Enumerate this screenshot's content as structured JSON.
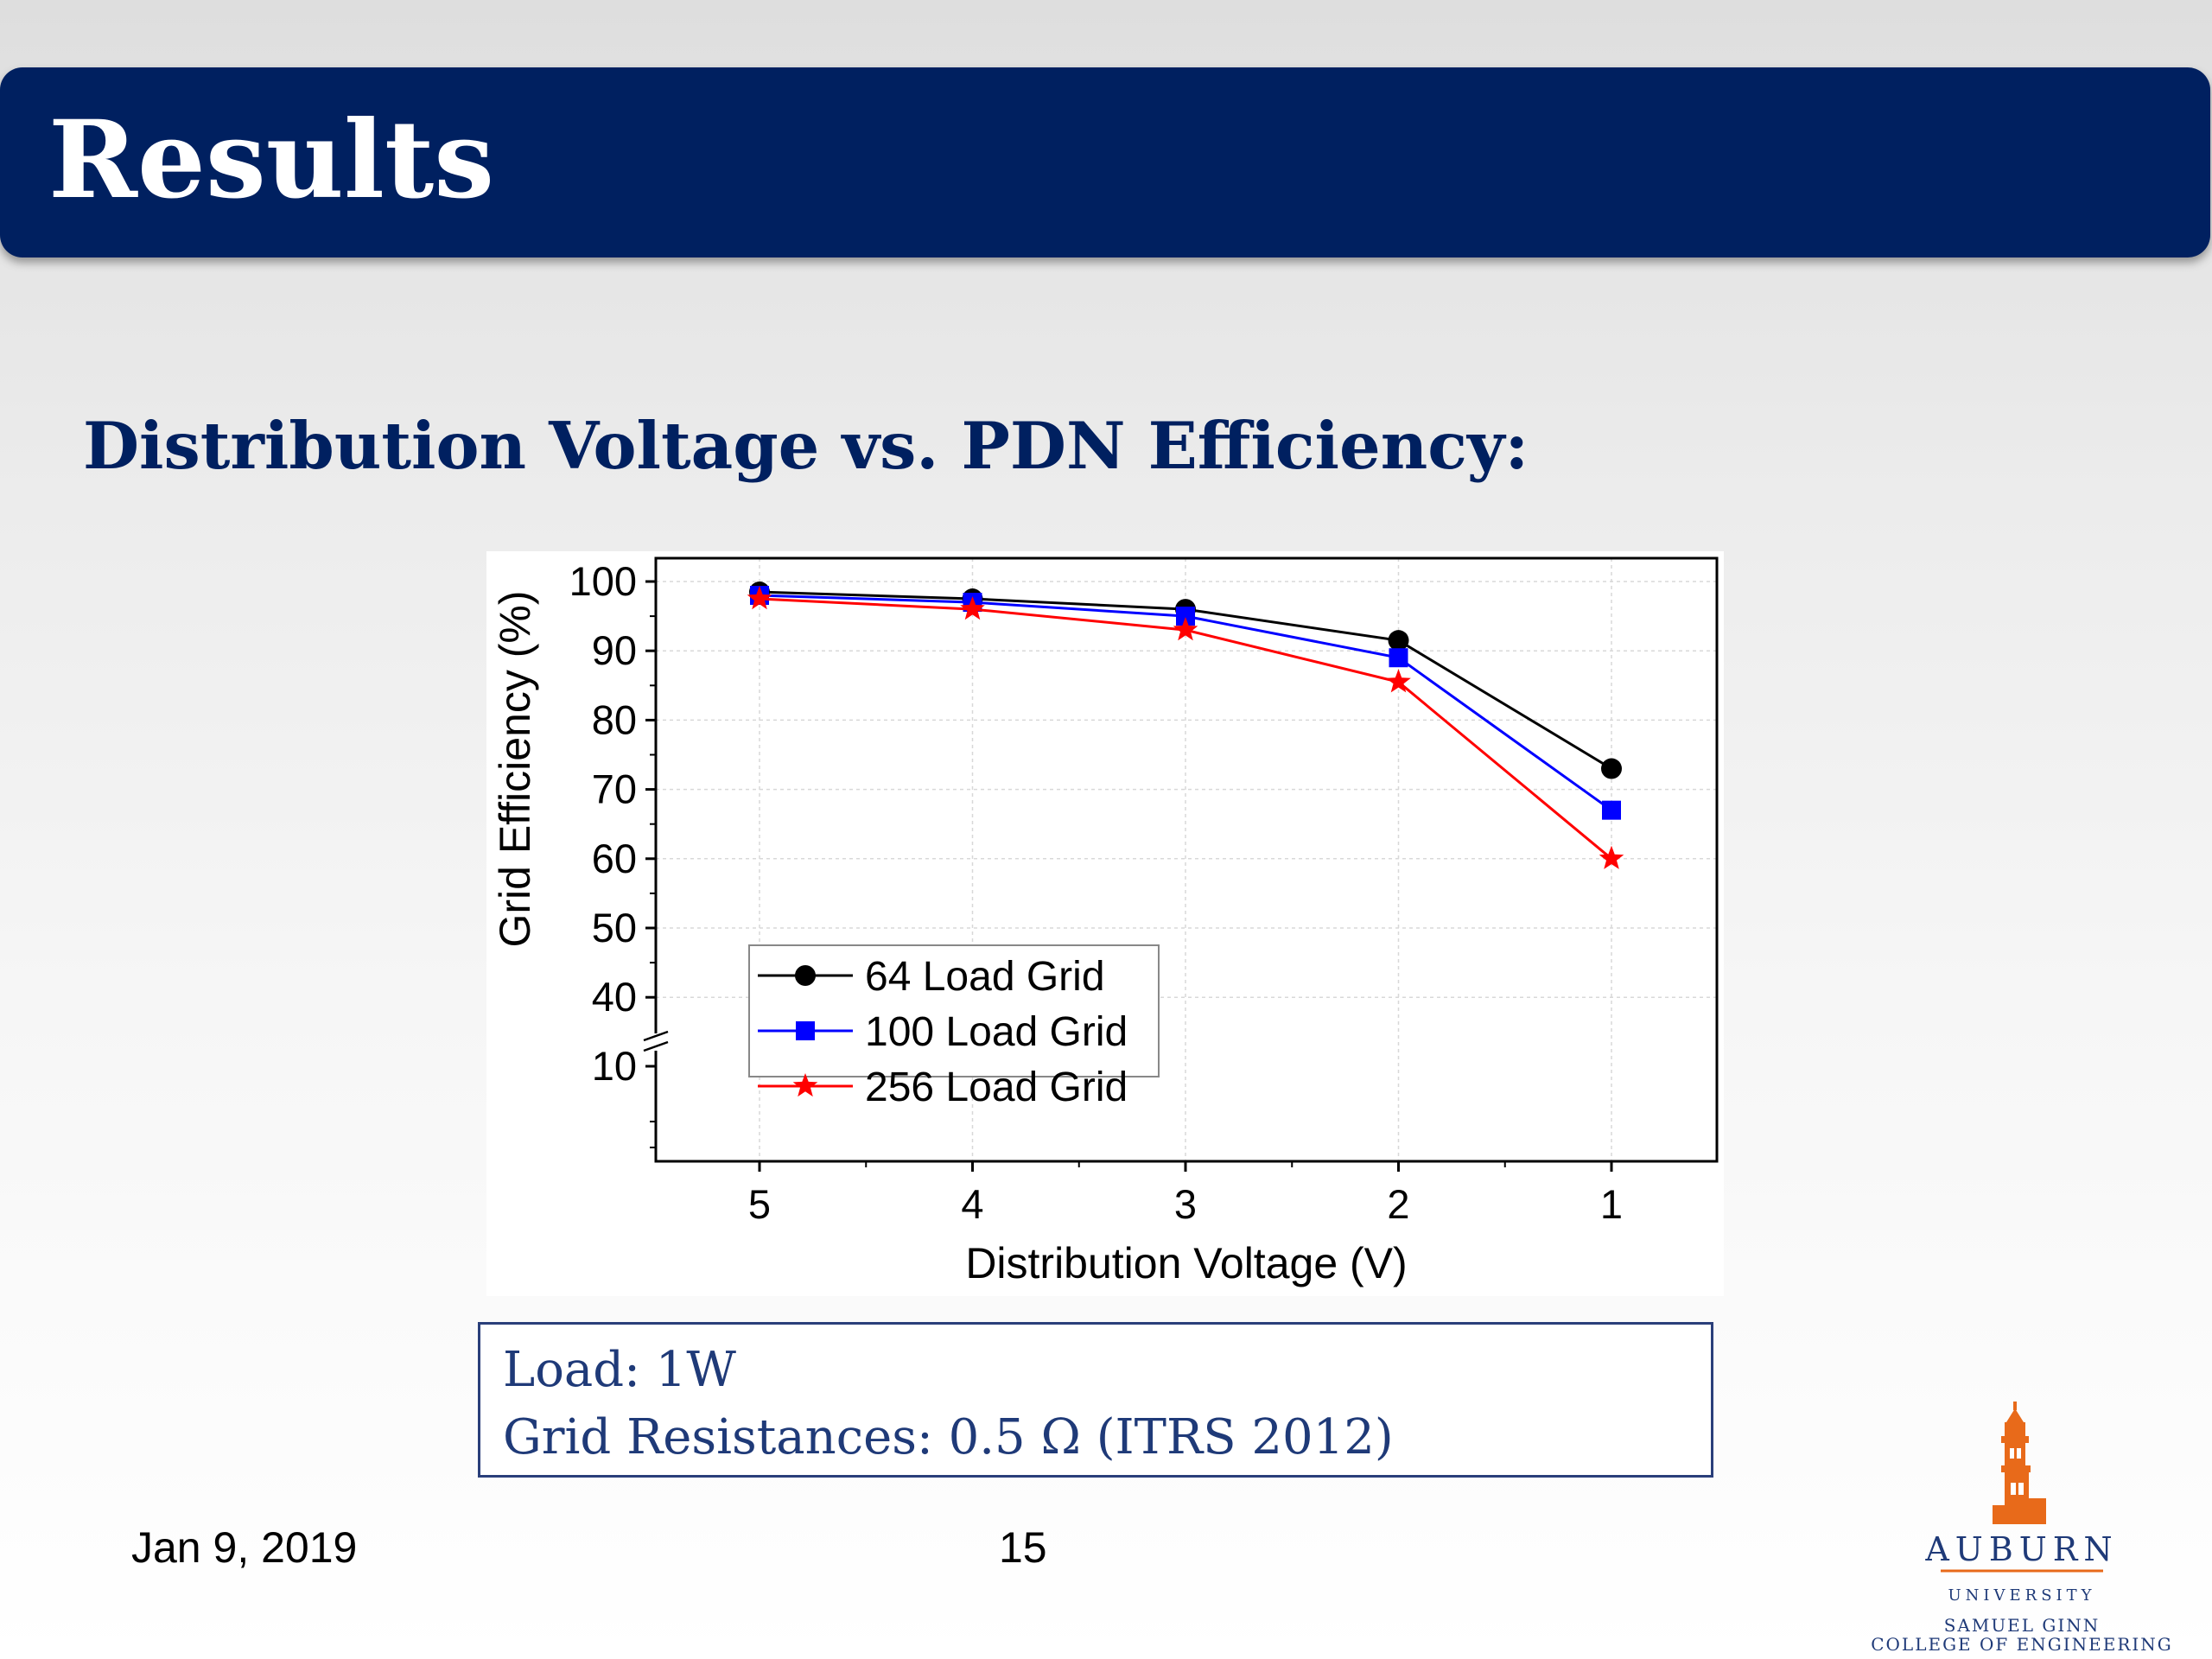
{
  "slide": {
    "title": "Results",
    "subtitle": "Distribution Voltage vs. PDN Efficiency:",
    "footer_date": "Jan 9, 2019",
    "footer_page": "15",
    "colors": {
      "title_bar": "#002060",
      "subtitle": "#002060",
      "info_text": "#1f3a78"
    }
  },
  "info_box": {
    "line1": "Load: 1W",
    "line2": "Grid Resistances: 0.5 Ω (ITRS 2012)"
  },
  "logo": {
    "name": "AUBURN",
    "sub": "UNIVERSITY",
    "college_line1": "SAMUEL GINN",
    "college_line2": "COLLEGE OF ENGINEERING",
    "icon": "tower-icon"
  },
  "chart_data": {
    "type": "line",
    "xlabel": "Distribution Voltage (V)",
    "ylabel": "Grid Efficiency (%)",
    "x": [
      5,
      4,
      3,
      2,
      1
    ],
    "x_reversed": true,
    "x_ticks": [
      "5",
      "4",
      "3",
      "2",
      "1"
    ],
    "y_ticks": [
      "100",
      "90",
      "80",
      "70",
      "60",
      "50",
      "40",
      "10"
    ],
    "y_axis_break": "between 10 and 40",
    "grid": true,
    "legend_position": "lower-left",
    "series": [
      {
        "name": "64 Load Grid",
        "color": "#000000",
        "marker": "circle",
        "values": [
          98.5,
          97.5,
          96,
          91.5,
          73
        ]
      },
      {
        "name": "100 Load Grid",
        "color": "#0000ff",
        "marker": "square",
        "values": [
          98,
          97,
          95,
          89,
          67
        ]
      },
      {
        "name": "256 Load Grid",
        "color": "#ff0000",
        "marker": "star",
        "values": [
          97.5,
          96,
          93,
          85.5,
          60
        ]
      }
    ]
  }
}
